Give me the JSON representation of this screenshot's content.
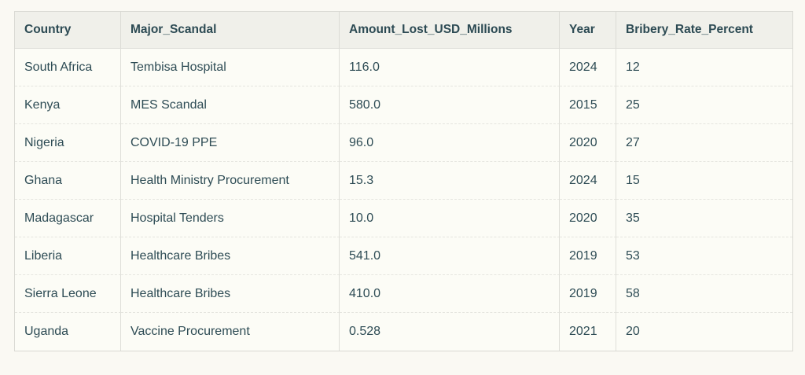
{
  "colors": {
    "page_background": "#faf9f3",
    "cell_background": "#fcfcf6",
    "header_background": "#f0f0ea",
    "text": "#2e4c55",
    "border": "#d9d9d3"
  },
  "table": {
    "columns": [
      {
        "key": "country",
        "label": "Country"
      },
      {
        "key": "scandal",
        "label": "Major_Scandal"
      },
      {
        "key": "amount",
        "label": "Amount_Lost_USD_Millions"
      },
      {
        "key": "year",
        "label": "Year"
      },
      {
        "key": "bribery",
        "label": "Bribery_Rate_Percent"
      }
    ],
    "rows": [
      {
        "country": "South Africa",
        "scandal": "Tembisa Hospital",
        "amount": "116.0",
        "year": "2024",
        "bribery": "12"
      },
      {
        "country": "Kenya",
        "scandal": "MES Scandal",
        "amount": "580.0",
        "year": "2015",
        "bribery": "25"
      },
      {
        "country": "Nigeria",
        "scandal": "COVID-19 PPE",
        "amount": "96.0",
        "year": "2020",
        "bribery": "27"
      },
      {
        "country": "Ghana",
        "scandal": "Health Ministry Procurement",
        "amount": "15.3",
        "year": "2024",
        "bribery": "15"
      },
      {
        "country": "Madagascar",
        "scandal": "Hospital Tenders",
        "amount": "10.0",
        "year": "2020",
        "bribery": "35"
      },
      {
        "country": "Liberia",
        "scandal": "Healthcare Bribes",
        "amount": "541.0",
        "year": "2019",
        "bribery": "53"
      },
      {
        "country": "Sierra Leone",
        "scandal": "Healthcare Bribes",
        "amount": "410.0",
        "year": "2019",
        "bribery": "58"
      },
      {
        "country": "Uganda",
        "scandal": "Vaccine Procurement",
        "amount": "0.528",
        "year": "2021",
        "bribery": "20"
      }
    ]
  },
  "chart_data": {
    "type": "table",
    "title": "",
    "columns": [
      "Country",
      "Major_Scandal",
      "Amount_Lost_USD_Millions",
      "Year",
      "Bribery_Rate_Percent"
    ],
    "rows": [
      [
        "South Africa",
        "Tembisa Hospital",
        116.0,
        2024,
        12
      ],
      [
        "Kenya",
        "MES Scandal",
        580.0,
        2015,
        25
      ],
      [
        "Nigeria",
        "COVID-19 PPE",
        96.0,
        2020,
        27
      ],
      [
        "Ghana",
        "Health Ministry Procurement",
        15.3,
        2024,
        15
      ],
      [
        "Madagascar",
        "Hospital Tenders",
        10.0,
        2020,
        35
      ],
      [
        "Liberia",
        "Healthcare Bribes",
        541.0,
        2019,
        53
      ],
      [
        "Sierra Leone",
        "Healthcare Bribes",
        410.0,
        2019,
        58
      ],
      [
        "Uganda",
        "Vaccine Procurement",
        0.528,
        2021,
        20
      ]
    ]
  }
}
